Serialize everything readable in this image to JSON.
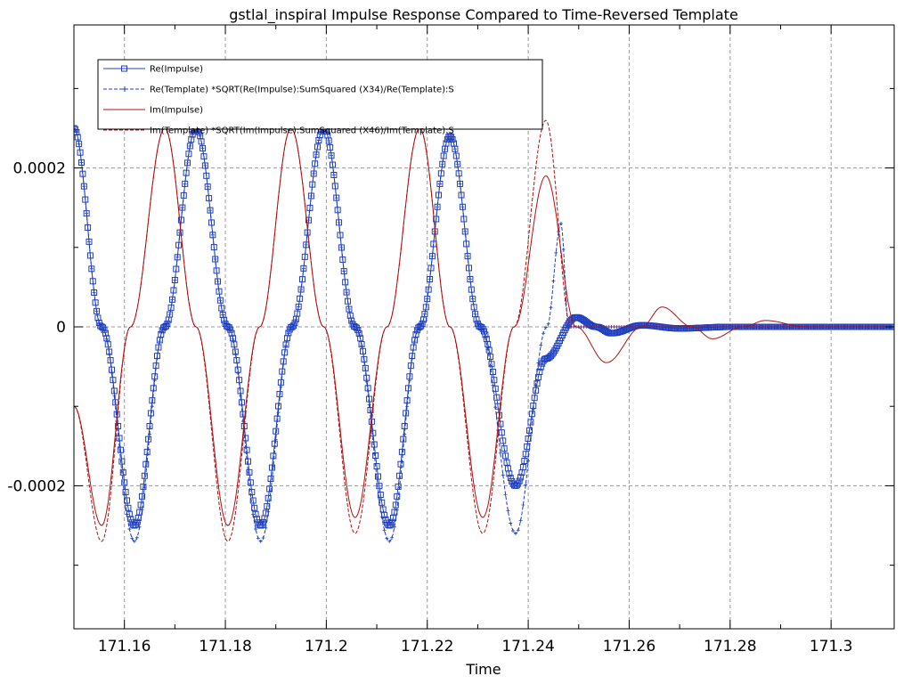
{
  "chart_data": {
    "type": "line",
    "title": "gstlal_inspiral Impulse Response Compared to Time-Reversed Template",
    "xlabel": "Time",
    "ylabel": "",
    "xlim": [
      171.15,
      171.3125
    ],
    "ylim": [
      -0.00038,
      0.00038
    ],
    "x_ticks": [
      171.16,
      171.18,
      171.2,
      171.22,
      171.24,
      171.26,
      171.28,
      171.3
    ],
    "x_tick_labels": [
      "171.16",
      "171.18",
      "171.2",
      "171.22",
      "171.24",
      "171.26",
      "171.28",
      "171.3"
    ],
    "y_ticks": [
      0.0002,
      0,
      -0.0002
    ],
    "y_tick_labels": [
      "0.0002",
      "0",
      "-0.0002"
    ],
    "grid": true,
    "legend_position": "top-left",
    "colors": {
      "real": "#1f3fbf",
      "imag": "#b01010"
    },
    "sample_step": 0.00025,
    "series": [
      {
        "name": "Re(Impulse)",
        "color": "#1f3fbf",
        "style": "solid",
        "marker": "square",
        "points": [
          [
            171.15,
            0.00025
          ],
          [
            171.1555,
            0.0
          ],
          [
            171.162,
            -0.00025
          ],
          [
            171.168,
            0.0
          ],
          [
            171.1742,
            0.00025
          ],
          [
            171.1805,
            0.0
          ],
          [
            171.187,
            -0.00025
          ],
          [
            171.1932,
            0.0
          ],
          [
            171.1995,
            0.00025
          ],
          [
            171.2057,
            0.0
          ],
          [
            171.2125,
            -0.00025
          ],
          [
            171.2185,
            0.0
          ],
          [
            171.2245,
            0.00024
          ],
          [
            171.2305,
            0.0
          ],
          [
            171.2375,
            -0.0002
          ],
          [
            171.2435,
            -4e-05
          ],
          [
            171.2495,
            1.2e-05
          ],
          [
            171.2535,
            0.0
          ],
          [
            171.2565,
            -8e-06
          ],
          [
            171.2625,
            2e-06
          ],
          [
            171.27,
            -2e-06
          ],
          [
            171.28,
            0.0
          ],
          [
            171.3125,
            0.0
          ]
        ]
      },
      {
        "name": "Re(Template) *SQRT(Re(Impulse):SumSquared (X34)/Re(Template):S",
        "color": "#1f3fbf",
        "style": "dashed",
        "marker": "plus",
        "points": [
          [
            171.15,
            0.00025
          ],
          [
            171.1555,
            0.0
          ],
          [
            171.162,
            -0.00027
          ],
          [
            171.168,
            0.0
          ],
          [
            171.1742,
            0.00025
          ],
          [
            171.1805,
            0.0
          ],
          [
            171.187,
            -0.00027
          ],
          [
            171.1932,
            0.0
          ],
          [
            171.1995,
            0.00025
          ],
          [
            171.2057,
            0.0
          ],
          [
            171.2125,
            -0.00027
          ],
          [
            171.2185,
            0.0
          ],
          [
            171.2245,
            0.00024
          ],
          [
            171.2305,
            0.0
          ],
          [
            171.2375,
            -0.00026
          ],
          [
            171.2437,
            0.0
          ],
          [
            171.2465,
            0.00013
          ],
          [
            171.248,
            0.0
          ],
          [
            171.25,
            0.0
          ],
          [
            171.3125,
            0.0
          ]
        ]
      },
      {
        "name": "Im(Impulse)",
        "color": "#b01010",
        "style": "solid",
        "marker": "none",
        "points": [
          [
            171.15,
            -0.0001
          ],
          [
            171.1555,
            -0.00025
          ],
          [
            171.1612,
            0.0
          ],
          [
            171.168,
            0.00025
          ],
          [
            171.1742,
            0.0
          ],
          [
            171.1805,
            -0.00025
          ],
          [
            171.1868,
            0.0
          ],
          [
            171.193,
            0.00025
          ],
          [
            171.1995,
            0.0
          ],
          [
            171.2057,
            -0.00024
          ],
          [
            171.212,
            0.0
          ],
          [
            171.2185,
            0.00025
          ],
          [
            171.2245,
            0.0
          ],
          [
            171.231,
            -0.00024
          ],
          [
            171.2372,
            0.0
          ],
          [
            171.2435,
            0.00019
          ],
          [
            171.2495,
            0.0
          ],
          [
            171.2555,
            -4.5e-05
          ],
          [
            171.2625,
            0.0
          ],
          [
            171.2665,
            2.5e-05
          ],
          [
            171.2725,
            0.0
          ],
          [
            171.2765,
            -1.5e-05
          ],
          [
            171.2825,
            0.0
          ],
          [
            171.287,
            8e-06
          ],
          [
            171.295,
            0.0
          ],
          [
            171.3125,
            0.0
          ]
        ]
      },
      {
        "name": "Im(Template) *SQRT(Im(Impulse):SumSquared (X46)/Im(Template):S",
        "color": "#b01010",
        "style": "dashed",
        "marker": "none",
        "points": [
          [
            171.15,
            -0.0001
          ],
          [
            171.1555,
            -0.00027
          ],
          [
            171.1612,
            0.0
          ],
          [
            171.168,
            0.00025
          ],
          [
            171.1742,
            0.0
          ],
          [
            171.1805,
            -0.00027
          ],
          [
            171.1868,
            0.0
          ],
          [
            171.193,
            0.00025
          ],
          [
            171.1995,
            0.0
          ],
          [
            171.2057,
            -0.00026
          ],
          [
            171.212,
            0.0
          ],
          [
            171.2185,
            0.00025
          ],
          [
            171.2245,
            0.0
          ],
          [
            171.231,
            -0.00026
          ],
          [
            171.2372,
            0.0
          ],
          [
            171.2435,
            0.00026
          ],
          [
            171.2485,
            0.0
          ],
          [
            171.25,
            0.0
          ],
          [
            171.3125,
            0.0
          ]
        ]
      }
    ]
  }
}
